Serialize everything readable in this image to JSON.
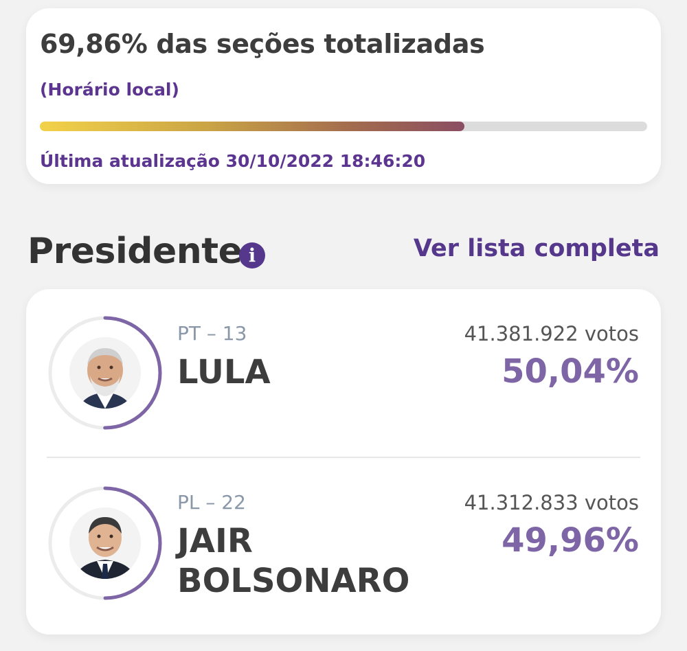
{
  "status": {
    "title": "69,86% das seções totalizadas",
    "timezone_note": "(Horário local)",
    "progress_percent": 69.86,
    "last_update": "Última atualização 30/10/2022 18:46:20"
  },
  "section": {
    "title": "Presidente",
    "info_icon": "info-icon",
    "see_all_label": "Ver lista completa"
  },
  "candidates": [
    {
      "party": "PT – 13",
      "name": "LULA",
      "votes": "41.381.922 votos",
      "percent_label": "50,04%",
      "percent": 50.04
    },
    {
      "party": "PL – 22",
      "name": "JAIR BOLSONARO",
      "votes": "41.312.833 votos",
      "percent_label": "49,96%",
      "percent": 49.96
    }
  ],
  "colors": {
    "accent": "#55378c",
    "percent": "#7e65a6",
    "ring": "#7e65a6",
    "ring_track": "#ececec"
  }
}
